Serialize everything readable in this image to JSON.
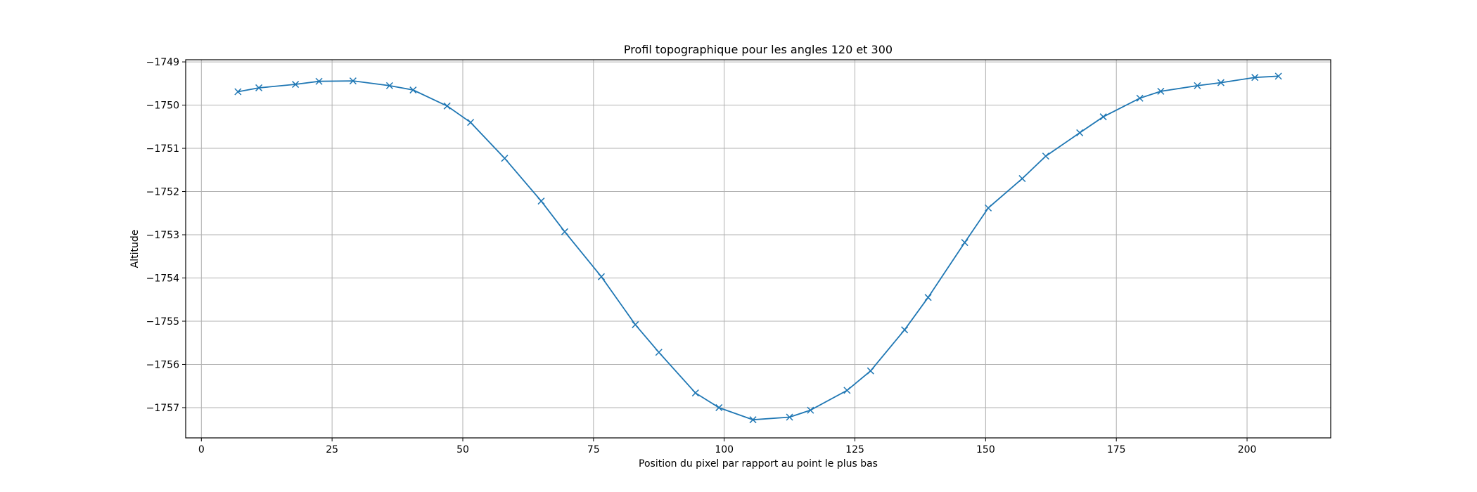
{
  "chart_data": {
    "type": "line",
    "title": "Profil topographique pour les angles 120 et 300",
    "xlabel": "Position du pixel par rapport au point le plus bas",
    "ylabel": "Altitude",
    "xlim": [
      -3,
      216
    ],
    "ylim": [
      -1757.7,
      -1748.95
    ],
    "x_ticks": [
      0,
      25,
      50,
      75,
      100,
      125,
      150,
      175,
      200
    ],
    "y_ticks": [
      -1749,
      -1750,
      -1751,
      -1752,
      -1753,
      -1754,
      -1755,
      -1756,
      -1757
    ],
    "x_tick_labels": [
      "0",
      "25",
      "50",
      "75",
      "100",
      "125",
      "150",
      "175",
      "200"
    ],
    "y_tick_labels": [
      "−1749",
      "−1750",
      "−1751",
      "−1752",
      "−1753",
      "−1754",
      "−1755",
      "−1756",
      "−1757"
    ],
    "grid": true,
    "marker": "x",
    "color": "#1f77b4",
    "series": [
      {
        "x": [
          7,
          11,
          18,
          22.5,
          29,
          36,
          40.5,
          47,
          51.5,
          58,
          65,
          69.5,
          76.5,
          83,
          87.5,
          94.5,
          99,
          105.5,
          112.5,
          116.5,
          123.5,
          128,
          134.5,
          139,
          146,
          150.5,
          157,
          161.5,
          168,
          172.5,
          179.5,
          183.5,
          190.5,
          195,
          201.5,
          206
        ],
        "y": [
          -1749.69,
          -1749.6,
          -1749.52,
          -1749.45,
          -1749.44,
          -1749.55,
          -1749.65,
          -1750.02,
          -1750.4,
          -1751.23,
          -1752.22,
          -1752.93,
          -1753.97,
          -1755.08,
          -1755.72,
          -1756.66,
          -1757.0,
          -1757.28,
          -1757.22,
          -1757.06,
          -1756.6,
          -1756.15,
          -1755.2,
          -1754.45,
          -1753.18,
          -1752.38,
          -1751.7,
          -1751.18,
          -1750.64,
          -1750.27,
          -1749.84,
          -1749.68,
          -1749.55,
          -1749.48,
          -1749.36,
          -1749.33
        ]
      }
    ]
  }
}
